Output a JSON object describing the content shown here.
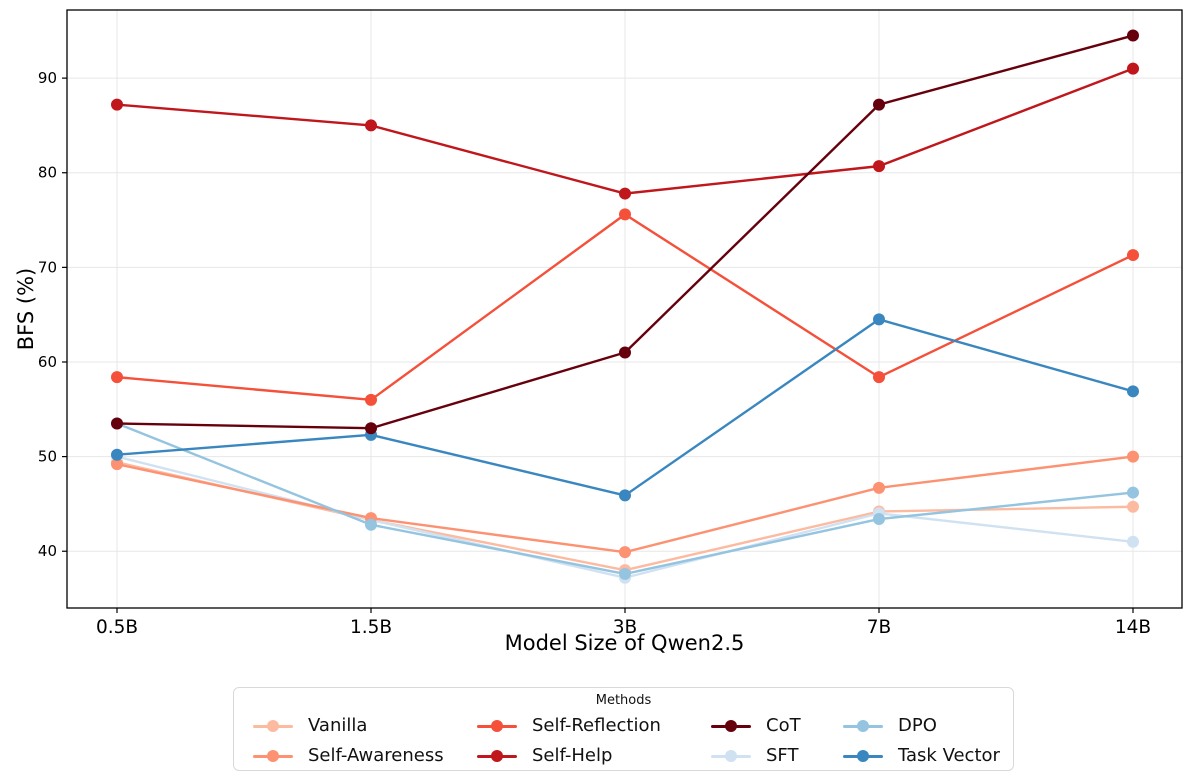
{
  "chart_data": {
    "type": "line",
    "title": "",
    "xlabel": "Model Size of Qwen2.5",
    "ylabel": "BFS (%)",
    "categories": [
      "0.5B",
      "1.5B",
      "3B",
      "7B",
      "14B"
    ],
    "yticks": [
      40,
      50,
      60,
      70,
      80,
      90
    ],
    "ylim": [
      34,
      97.2
    ],
    "grid": true,
    "grid_color": "#e7e7e7",
    "legend_position": "bottom",
    "series": [
      {
        "name": "Vanilla",
        "color": "#fcbba1",
        "values": [
          49.4,
          43.3,
          38.0,
          44.2,
          44.7
        ]
      },
      {
        "name": "Self-Awareness",
        "color": "#fc9272",
        "values": [
          49.2,
          43.5,
          39.9,
          46.7,
          50.0
        ]
      },
      {
        "name": "Self-Reflection",
        "color": "#f4503a",
        "values": [
          58.4,
          56.0,
          75.6,
          58.4,
          71.3
        ]
      },
      {
        "name": "Self-Help",
        "color": "#bf171c",
        "values": [
          87.2,
          85.0,
          77.8,
          80.7,
          91.0
        ]
      },
      {
        "name": "CoT",
        "color": "#67000d",
        "values": [
          53.5,
          53.0,
          61.0,
          87.2,
          94.5
        ]
      },
      {
        "name": "SFT",
        "color": "#d0e1f2",
        "values": [
          50.0,
          43.3,
          37.2,
          44.0,
          41.0
        ]
      },
      {
        "name": "DPO",
        "color": "#94c4df",
        "values": [
          53.5,
          42.8,
          37.6,
          43.4,
          46.2
        ]
      },
      {
        "name": "Task Vector",
        "color": "#3a87c0",
        "values": [
          50.2,
          52.3,
          45.9,
          64.5,
          56.9
        ]
      }
    ],
    "draw_order": [
      "Vanilla",
      "SFT",
      "Self-Awareness",
      "DPO",
      "Self-Reflection",
      "Task Vector",
      "Self-Help",
      "CoT"
    ]
  },
  "legend": {
    "title": "Methods",
    "columns": [
      [
        "Vanilla",
        "Self-Awareness"
      ],
      [
        "Self-Reflection",
        "Self-Help"
      ],
      [
        "CoT",
        "SFT"
      ],
      [
        "DPO",
        "Task Vector"
      ]
    ],
    "column_lefts": [
      19,
      243,
      477,
      609
    ]
  }
}
